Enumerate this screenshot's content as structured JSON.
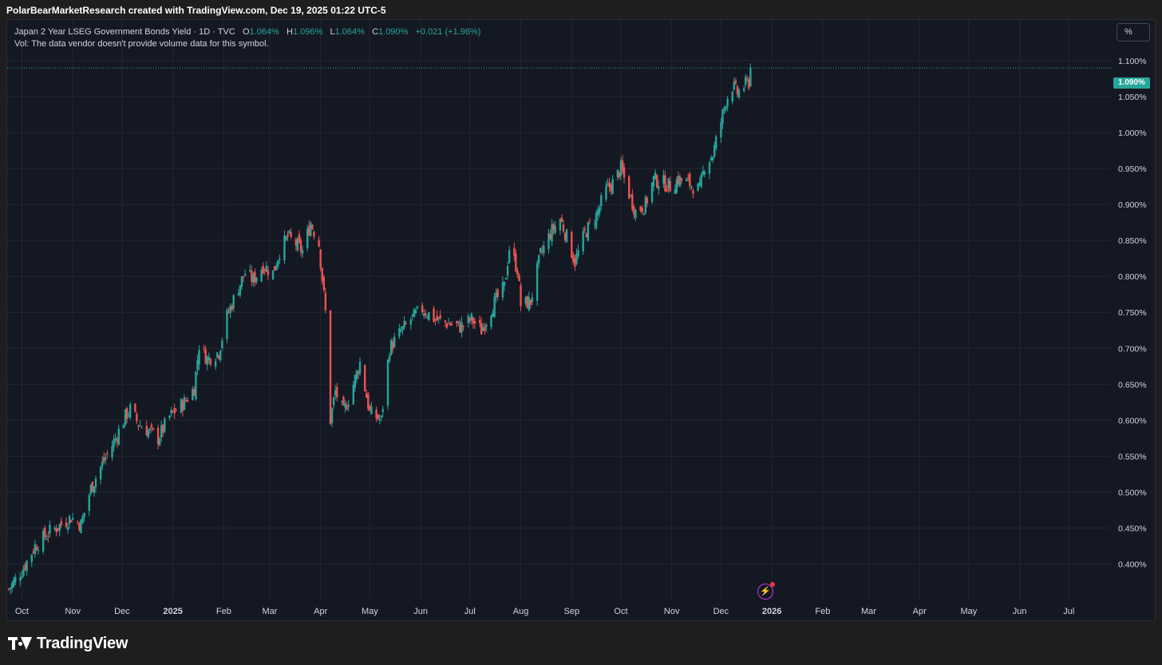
{
  "header": {
    "attribution": "PolarBearMarketResearch created with TradingView.com, Dec 19, 2025 01:22 UTC-5"
  },
  "legend": {
    "symbol": "Japan 2 Year LSEG Government Bonds Yield · 1D · TVC",
    "open_label": "O",
    "open": "1.064%",
    "high_label": "H",
    "high": "1.096%",
    "low_label": "L",
    "low": "1.064%",
    "close_label": "C",
    "close": "1.090%",
    "change": "+0.021 (+1.96%)",
    "volume_note": "Vol: The data vendor doesn't provide volume data for this symbol."
  },
  "toolbar": {
    "scale_button": "%"
  },
  "price_tag": "1.090%",
  "brand": {
    "name": "TradingView"
  },
  "colors": {
    "background": "#141823",
    "up": "#26a69a",
    "down": "#ef5350",
    "grid": "#232733",
    "text": "#d1d4dc"
  },
  "chart_data": {
    "type": "candlestick",
    "y_unit": "%",
    "ylim": [
      0.355,
      1.11
    ],
    "yticks": [
      {
        "value": 0.4,
        "label": "0.400%"
      },
      {
        "value": 0.45,
        "label": "0.450%"
      },
      {
        "value": 0.5,
        "label": "0.500%"
      },
      {
        "value": 0.55,
        "label": "0.550%"
      },
      {
        "value": 0.6,
        "label": "0.600%"
      },
      {
        "value": 0.65,
        "label": "0.650%"
      },
      {
        "value": 0.7,
        "label": "0.700%"
      },
      {
        "value": 0.75,
        "label": "0.750%"
      },
      {
        "value": 0.8,
        "label": "0.800%"
      },
      {
        "value": 0.85,
        "label": "0.850%"
      },
      {
        "value": 0.9,
        "label": "0.900%"
      },
      {
        "value": 0.95,
        "label": "0.950%"
      },
      {
        "value": 1.0,
        "label": "1.000%"
      },
      {
        "value": 1.05,
        "label": "1.050%"
      },
      {
        "value": 1.1,
        "label": "1.100%"
      }
    ],
    "xticks": [
      {
        "date": "2024-10-01",
        "label": "Oct"
      },
      {
        "date": "2024-11-01",
        "label": "Nov"
      },
      {
        "date": "2024-12-01",
        "label": "Dec"
      },
      {
        "date": "2025-01-01",
        "label": "2025",
        "bold": true
      },
      {
        "date": "2025-02-01",
        "label": "Feb"
      },
      {
        "date": "2025-03-01",
        "label": "Mar"
      },
      {
        "date": "2025-04-01",
        "label": "Apr"
      },
      {
        "date": "2025-05-01",
        "label": "May"
      },
      {
        "date": "2025-06-01",
        "label": "Jun"
      },
      {
        "date": "2025-07-01",
        "label": "Jul"
      },
      {
        "date": "2025-08-01",
        "label": "Aug"
      },
      {
        "date": "2025-09-01",
        "label": "Sep"
      },
      {
        "date": "2025-10-01",
        "label": "Oct"
      },
      {
        "date": "2025-11-01",
        "label": "Nov"
      },
      {
        "date": "2025-12-01",
        "label": "Dec"
      },
      {
        "date": "2026-01-01",
        "label": "2026",
        "bold": true
      },
      {
        "date": "2026-02-01",
        "label": "Feb"
      },
      {
        "date": "2026-03-01",
        "label": "Mar"
      },
      {
        "date": "2026-04-01",
        "label": "Apr"
      },
      {
        "date": "2026-05-01",
        "label": "May"
      },
      {
        "date": "2026-06-01",
        "label": "Jun"
      },
      {
        "date": "2026-07-01",
        "label": "Jul"
      }
    ],
    "xlim": [
      "2024-09-23",
      "2026-07-31"
    ],
    "last_price": 1.09,
    "series": [
      {
        "closes": [
          {
            "date": "2024-09-23",
            "value": 0.365
          },
          {
            "date": "2024-10-02",
            "value": 0.395
          },
          {
            "date": "2024-10-09",
            "value": 0.425
          },
          {
            "date": "2024-10-18",
            "value": 0.445
          },
          {
            "date": "2024-10-25",
            "value": 0.455
          },
          {
            "date": "2024-10-31",
            "value": 0.465
          },
          {
            "date": "2024-11-06",
            "value": 0.455
          },
          {
            "date": "2024-11-12",
            "value": 0.505
          },
          {
            "date": "2024-11-18",
            "value": 0.535
          },
          {
            "date": "2024-11-25",
            "value": 0.565
          },
          {
            "date": "2024-11-29",
            "value": 0.585
          },
          {
            "date": "2024-12-03",
            "value": 0.605
          },
          {
            "date": "2024-12-06",
            "value": 0.615
          },
          {
            "date": "2024-12-11",
            "value": 0.595
          },
          {
            "date": "2024-12-17",
            "value": 0.585
          },
          {
            "date": "2024-12-23",
            "value": 0.575
          },
          {
            "date": "2024-12-30",
            "value": 0.605
          },
          {
            "date": "2025-01-08",
            "value": 0.625
          },
          {
            "date": "2025-01-14",
            "value": 0.645
          },
          {
            "date": "2025-01-17",
            "value": 0.705
          },
          {
            "date": "2025-01-22",
            "value": 0.685
          },
          {
            "date": "2025-01-29",
            "value": 0.695
          },
          {
            "date": "2025-02-03",
            "value": 0.745
          },
          {
            "date": "2025-02-10",
            "value": 0.785
          },
          {
            "date": "2025-02-14",
            "value": 0.805
          },
          {
            "date": "2025-02-19",
            "value": 0.795
          },
          {
            "date": "2025-02-25",
            "value": 0.815
          },
          {
            "date": "2025-03-03",
            "value": 0.805
          },
          {
            "date": "2025-03-07",
            "value": 0.835
          },
          {
            "date": "2025-03-12",
            "value": 0.855
          },
          {
            "date": "2025-03-17",
            "value": 0.845
          },
          {
            "date": "2025-03-21",
            "value": 0.835
          },
          {
            "date": "2025-03-26",
            "value": 0.875
          },
          {
            "date": "2025-03-31",
            "value": 0.845
          },
          {
            "date": "2025-04-04",
            "value": 0.75
          },
          {
            "date": "2025-04-07",
            "value": 0.6
          },
          {
            "date": "2025-04-10",
            "value": 0.64
          },
          {
            "date": "2025-04-15",
            "value": 0.61
          },
          {
            "date": "2025-04-21",
            "value": 0.65
          },
          {
            "date": "2025-04-25",
            "value": 0.68
          },
          {
            "date": "2025-05-01",
            "value": 0.61
          },
          {
            "date": "2025-05-08",
            "value": 0.6
          },
          {
            "date": "2025-05-13",
            "value": 0.7
          },
          {
            "date": "2025-05-19",
            "value": 0.72
          },
          {
            "date": "2025-05-26",
            "value": 0.74
          },
          {
            "date": "2025-06-02",
            "value": 0.755
          },
          {
            "date": "2025-06-10",
            "value": 0.74
          },
          {
            "date": "2025-06-17",
            "value": 0.735
          },
          {
            "date": "2025-06-25",
            "value": 0.73
          },
          {
            "date": "2025-07-02",
            "value": 0.74
          },
          {
            "date": "2025-07-08",
            "value": 0.725
          },
          {
            "date": "2025-07-15",
            "value": 0.76
          },
          {
            "date": "2025-07-22",
            "value": 0.785
          },
          {
            "date": "2025-07-25",
            "value": 0.84
          },
          {
            "date": "2025-07-30",
            "value": 0.81
          },
          {
            "date": "2025-08-01",
            "value": 0.76
          },
          {
            "date": "2025-08-07",
            "value": 0.765
          },
          {
            "date": "2025-08-13",
            "value": 0.83
          },
          {
            "date": "2025-08-19",
            "value": 0.86
          },
          {
            "date": "2025-08-25",
            "value": 0.88
          },
          {
            "date": "2025-08-29",
            "value": 0.855
          },
          {
            "date": "2025-09-03",
            "value": 0.82
          },
          {
            "date": "2025-09-09",
            "value": 0.86
          },
          {
            "date": "2025-09-16",
            "value": 0.885
          },
          {
            "date": "2025-09-22",
            "value": 0.92
          },
          {
            "date": "2025-09-26",
            "value": 0.93
          },
          {
            "date": "2025-10-01",
            "value": 0.95
          },
          {
            "date": "2025-10-06",
            "value": 0.915
          },
          {
            "date": "2025-10-10",
            "value": 0.89
          },
          {
            "date": "2025-10-16",
            "value": 0.9
          },
          {
            "date": "2025-10-21",
            "value": 0.935
          },
          {
            "date": "2025-10-27",
            "value": 0.93
          },
          {
            "date": "2025-10-31",
            "value": 0.925
          },
          {
            "date": "2025-11-05",
            "value": 0.935
          },
          {
            "date": "2025-11-11",
            "value": 0.93
          },
          {
            "date": "2025-11-18",
            "value": 0.92
          },
          {
            "date": "2025-11-21",
            "value": 0.955
          },
          {
            "date": "2025-11-26",
            "value": 0.97
          },
          {
            "date": "2025-12-01",
            "value": 1.015
          },
          {
            "date": "2025-12-04",
            "value": 1.045
          },
          {
            "date": "2025-12-08",
            "value": 1.065
          },
          {
            "date": "2025-12-11",
            "value": 1.055
          },
          {
            "date": "2025-12-15",
            "value": 1.065
          },
          {
            "date": "2025-12-18",
            "value": 1.07
          },
          {
            "date": "2025-12-19",
            "value": 1.09
          }
        ]
      }
    ]
  }
}
